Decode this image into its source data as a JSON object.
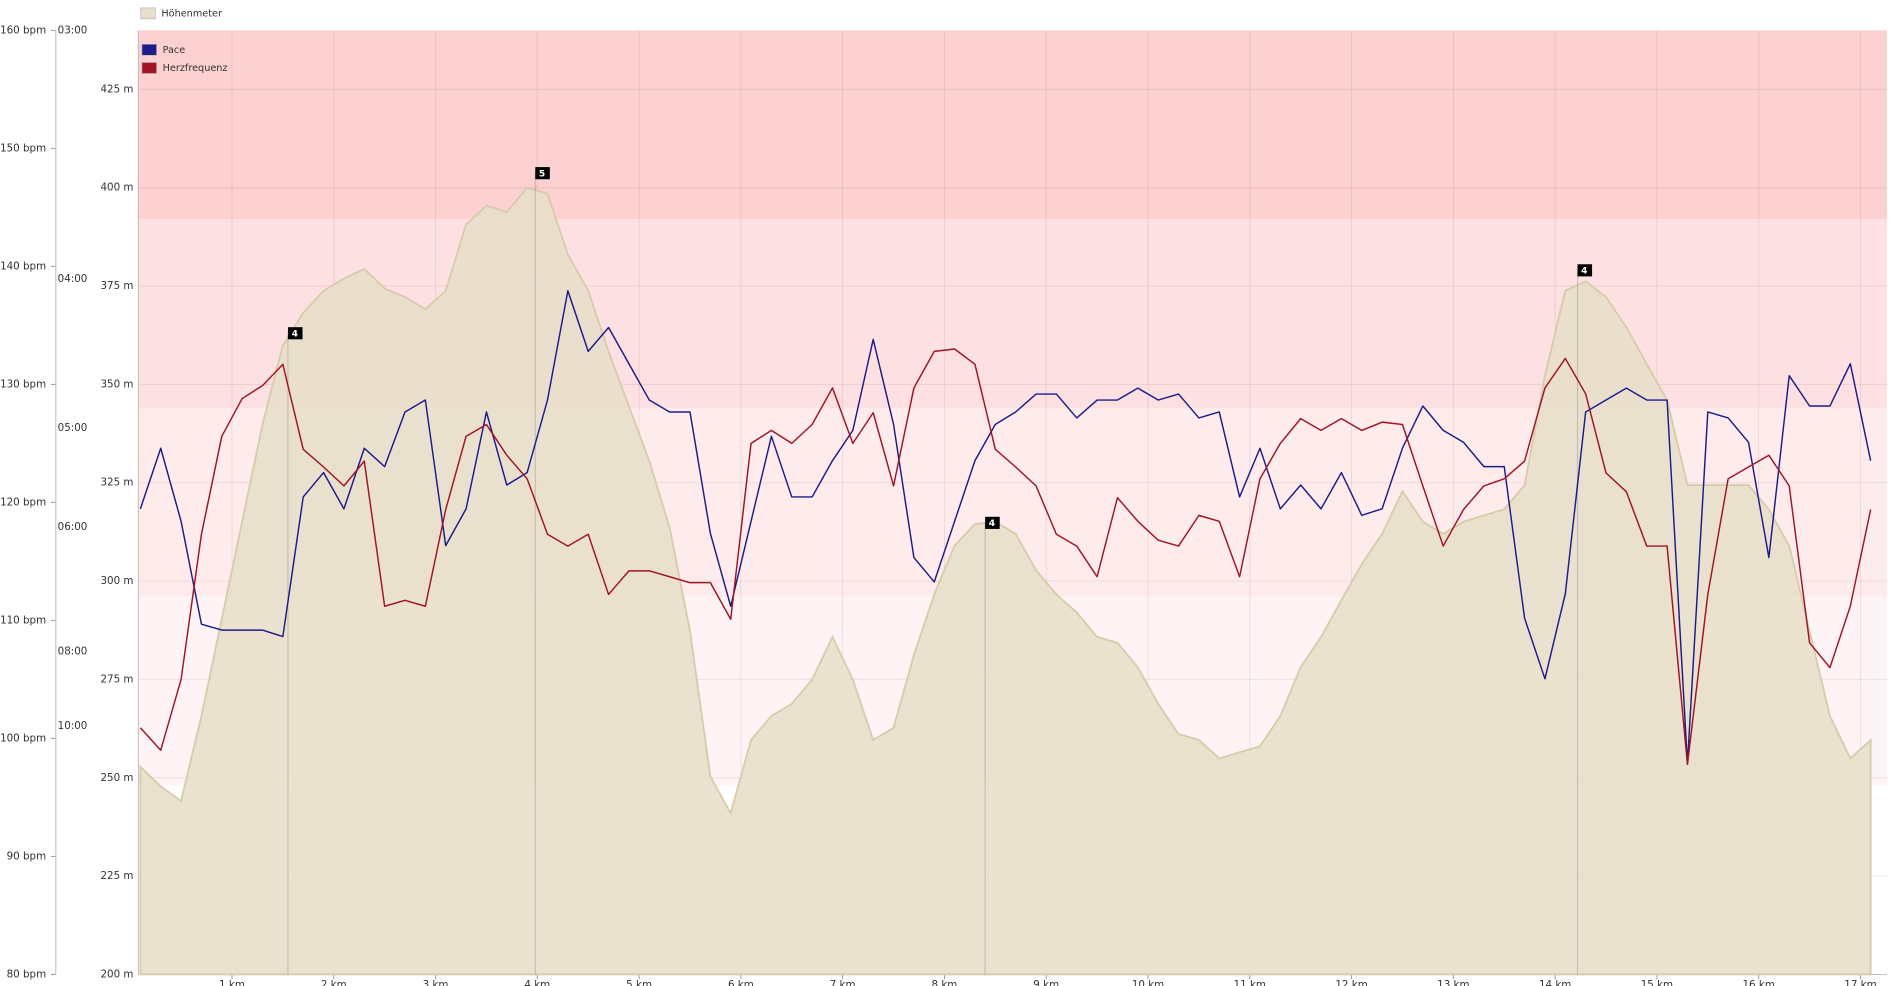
{
  "chart_data": {
    "type": "line",
    "x": [
      0.1,
      0.3,
      0.5,
      0.7,
      0.9,
      1.1,
      1.3,
      1.5,
      1.7,
      1.9,
      2.1,
      2.3,
      2.5,
      2.7,
      2.9,
      3.1,
      3.3,
      3.5,
      3.7,
      3.9,
      4.1,
      4.3,
      4.5,
      4.7,
      4.9,
      5.1,
      5.3,
      5.5,
      5.7,
      5.9,
      6.1,
      6.3,
      6.5,
      6.7,
      6.9,
      7.1,
      7.3,
      7.5,
      7.7,
      7.9,
      8.1,
      8.3,
      8.5,
      8.7,
      8.9,
      9.1,
      9.3,
      9.5,
      9.7,
      9.9,
      10.1,
      10.3,
      10.5,
      10.7,
      10.9,
      11.1,
      11.3,
      11.5,
      11.7,
      11.9,
      12.1,
      12.3,
      12.5,
      12.7,
      12.9,
      13.1,
      13.3,
      13.5,
      13.7,
      13.9,
      14.1,
      14.3,
      14.5,
      14.7,
      14.9,
      15.1,
      15.3,
      15.5,
      15.7,
      15.9,
      16.1,
      16.3,
      16.5,
      16.7,
      16.9,
      17.1
    ],
    "xlim": [
      0.08,
      17.26
    ],
    "xticks": [
      {
        "value": 1,
        "label": "1 km"
      },
      {
        "value": 2,
        "label": "2 km"
      },
      {
        "value": 3,
        "label": "3 km"
      },
      {
        "value": 4,
        "label": "4 km"
      },
      {
        "value": 5,
        "label": "5 km"
      },
      {
        "value": 6,
        "label": "6 km"
      },
      {
        "value": 7,
        "label": "7 km"
      },
      {
        "value": 8,
        "label": "8 km"
      },
      {
        "value": 9,
        "label": "9 km"
      },
      {
        "value": 10,
        "label": "10 km"
      },
      {
        "value": 11,
        "label": "11 km"
      },
      {
        "value": 12,
        "label": "12 km"
      },
      {
        "value": 13,
        "label": "13 km"
      },
      {
        "value": 14,
        "label": "14 km"
      },
      {
        "value": 15,
        "label": "15 km"
      },
      {
        "value": 16,
        "label": "16 km"
      },
      {
        "value": 17,
        "label": "17 km"
      }
    ],
    "ylim": [
      200,
      440
    ],
    "yticks": [
      {
        "value": 200,
        "label": "200 m"
      },
      {
        "value": 225,
        "label": "225 m"
      },
      {
        "value": 250,
        "label": "250 m"
      },
      {
        "value": 275,
        "label": "275 m"
      },
      {
        "value": 300,
        "label": "300 m"
      },
      {
        "value": 325,
        "label": "325 m"
      },
      {
        "value": 350,
        "label": "350 m"
      },
      {
        "value": 375,
        "label": "375 m"
      },
      {
        "value": 400,
        "label": "400 m"
      },
      {
        "value": 425,
        "label": "425 m"
      }
    ],
    "y2lim": [
      80,
      160
    ],
    "y2ticks": [
      {
        "value": 80,
        "label": "80 bpm"
      },
      {
        "value": 90,
        "label": "90 bpm"
      },
      {
        "value": 100,
        "label": "100 bpm"
      },
      {
        "value": 110,
        "label": "110 bpm"
      },
      {
        "value": 120,
        "label": "120 bpm"
      },
      {
        "value": 130,
        "label": "130 bpm"
      },
      {
        "value": 140,
        "label": "140 bpm"
      },
      {
        "value": 150,
        "label": "150 bpm"
      },
      {
        "value": 160,
        "label": "160 bpm"
      }
    ],
    "y3lim": [
      1,
      20
    ],
    "y3ticks": [
      {
        "value": 20,
        "label": "03:00"
      },
      {
        "value": 15,
        "label": "04:00"
      },
      {
        "value": 12,
        "label": "05:00"
      },
      {
        "value": 10,
        "label": "06:00"
      },
      {
        "value": 7.5,
        "label": "08:00"
      },
      {
        "value": 6,
        "label": "10:00"
      }
    ],
    "grid": true,
    "zones": [
      {
        "from": 96,
        "to": 112,
        "color": "#fef4f5"
      },
      {
        "from": 112,
        "to": 128,
        "color": "#feeced"
      },
      {
        "from": 128,
        "to": 144,
        "color": "#fde0e1"
      },
      {
        "from": 144,
        "to": 160,
        "color": "#fdd0d1"
      }
    ],
    "series": [
      {
        "name": "Höhenmeter",
        "type": "area",
        "axis": "y",
        "color": "#e8dfca",
        "values": [
          252.8,
          247.8,
          244.1,
          265.7,
          290.4,
          315.1,
          339.8,
          359.9,
          368.2,
          373.8,
          376.9,
          379.3,
          374.4,
          372.2,
          369.1,
          373.8,
          390.7,
          395.4,
          393.8,
          400,
          398.5,
          383,
          373.8,
          358.3,
          344.4,
          330.6,
          313.6,
          287.3,
          250.3,
          241,
          259.6,
          265.7,
          268.8,
          275,
          285.8,
          275,
          259.6,
          262.7,
          281.2,
          296.6,
          309,
          314.5,
          315.1,
          312,
          302.8,
          296.6,
          292,
          285.8,
          284.3,
          278.1,
          268.8,
          261.1,
          259.6,
          254.9,
          256.5,
          258,
          265.7,
          278.1,
          285.8,
          295.1,
          304.3,
          312,
          322.8,
          315.1,
          312,
          315.1,
          316.7,
          318.2,
          324.4,
          352.2,
          373.8,
          376.2,
          372.2,
          364.5,
          355.2,
          346,
          324.4,
          324.4,
          324.4,
          324.4,
          318.2,
          309,
          287.3,
          265.7,
          254.9,
          259.6
        ]
      },
      {
        "name": "Pace",
        "type": "line",
        "axis": "y3",
        "color": "#1c1c8a",
        "values": [
          10.37,
          11.59,
          10.12,
          8.05,
          7.93,
          7.93,
          7.93,
          7.8,
          10.61,
          11.1,
          10.37,
          11.59,
          11.22,
          12.32,
          12.56,
          9.63,
          10.37,
          12.32,
          10.85,
          11.1,
          12.56,
          14.76,
          13.54,
          14.02,
          13.29,
          12.56,
          12.32,
          12.32,
          9.88,
          8.41,
          10.12,
          11.83,
          10.61,
          10.61,
          11.34,
          11.95,
          13.78,
          12.07,
          9.39,
          8.9,
          10.12,
          11.34,
          12.07,
          12.32,
          12.68,
          12.68,
          12.2,
          12.56,
          12.56,
          12.8,
          12.56,
          12.68,
          12.2,
          12.32,
          10.61,
          11.59,
          10.37,
          10.85,
          10.37,
          11.1,
          10.24,
          10.37,
          11.59,
          12.44,
          11.95,
          11.71,
          11.22,
          11.22,
          8.17,
          6.95,
          8.66,
          12.32,
          12.56,
          12.8,
          12.56,
          12.56,
          5.24,
          12.32,
          12.2,
          11.71,
          9.39,
          13.05,
          12.44,
          12.44,
          13.29,
          11.34
        ]
      },
      {
        "name": "Herzfrequenz",
        "type": "line",
        "axis": "y2",
        "color": "#a01424",
        "values": [
          100.9,
          99.0,
          105.0,
          117.3,
          125.6,
          128.8,
          129.9,
          131.7,
          124.5,
          123.0,
          121.4,
          123.5,
          111.2,
          111.7,
          111.2,
          119.4,
          125.6,
          126.6,
          124.0,
          122.0,
          117.3,
          116.3,
          117.3,
          112.2,
          114.2,
          114.2,
          113.7,
          113.2,
          113.2,
          110.1,
          125.0,
          126.1,
          125.0,
          126.6,
          129.7,
          125.0,
          127.6,
          121.4,
          129.7,
          132.8,
          133.0,
          131.7,
          124.5,
          123.0,
          121.4,
          117.3,
          116.3,
          113.7,
          120.4,
          118.4,
          116.8,
          116.3,
          118.9,
          118.4,
          113.7,
          122.0,
          125.0,
          127.1,
          126.1,
          127.1,
          126.1,
          126.8,
          126.6,
          121.4,
          116.3,
          119.4,
          121.4,
          122.0,
          123.5,
          129.7,
          132.2,
          129.2,
          122.5,
          120.9,
          116.3,
          116.3,
          97.8,
          112.2,
          122.0,
          123.0,
          124.0,
          121.4,
          108.1,
          106.0,
          111.2,
          119.4
        ]
      }
    ],
    "annotations": [
      {
        "x": 1.55,
        "y": 363,
        "label": "4"
      },
      {
        "x": 3.98,
        "y": 403.7,
        "label": "5"
      },
      {
        "x": 8.4,
        "y": 314.8,
        "label": "4"
      },
      {
        "x": 14.22,
        "y": 379,
        "label": "4"
      }
    ]
  }
}
